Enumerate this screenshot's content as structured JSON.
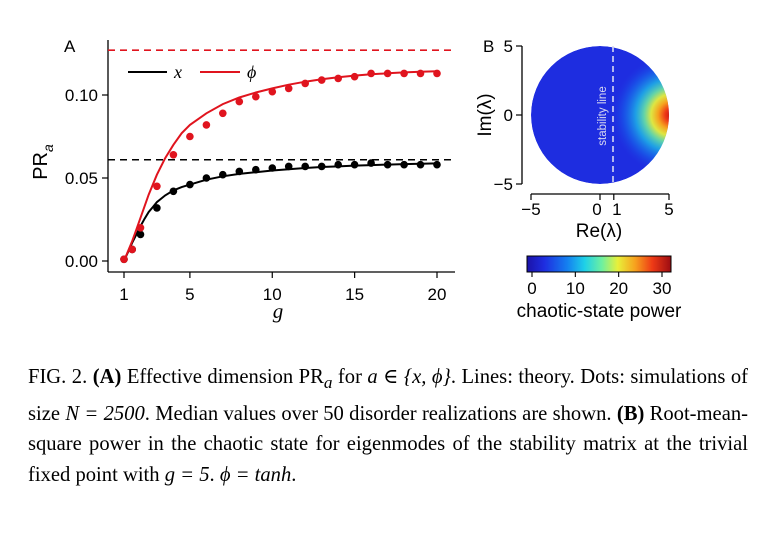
{
  "panel_a": {
    "label": "A",
    "legend": {
      "x_symbol": "x",
      "phi_symbol": "ϕ"
    },
    "xlabel": "g",
    "ylabel_main": "PR",
    "ylabel_sub": "a",
    "x_ticks": [
      "1",
      "5",
      "10",
      "15",
      "20"
    ],
    "y_ticks": [
      "0.00",
      "0.05",
      "0.10"
    ]
  },
  "panel_b": {
    "label": "B",
    "xlabel": "Re(λ)",
    "ylabel": "Im(λ)",
    "x_ticks": [
      "−5",
      "0",
      "1",
      "5"
    ],
    "y_ticks": [
      "5",
      "0",
      "−5"
    ],
    "stability_label": "stability line",
    "colorbar_ticks": [
      "0",
      "10",
      "20",
      "30"
    ],
    "colorbar_label": "chaotic-state power"
  },
  "caption": {
    "fig_label": "FIG. 2.",
    "a_tag": "(A)",
    "a_text_1": " Effective dimension PR",
    "a_sub": "a",
    "a_text_2": " for ",
    "a_math": "a ∈ {x, ϕ}",
    "a_text_3": ". Lines: theory. Dots: simulations of size ",
    "a_math_n": "N = 2500",
    "a_text_4": ". Median values over 50 disorder realizations are shown. ",
    "b_tag": "(B)",
    "b_text_1": " Root-mean-square power in the chaotic state for eigenmodes of the stability matrix at the trivial fixed point with ",
    "b_math_g": "g = 5",
    "b_text_2": ". ",
    "b_math_phi": "ϕ = tanh",
    "b_text_3": "."
  },
  "colors": {
    "x_series": "#000000",
    "phi_series": "#e0141e",
    "x_asymptote": "#000000",
    "phi_asymptote": "#e0141e"
  },
  "chart_data": [
    {
      "type": "line",
      "panel": "A",
      "title": "",
      "xlabel": "g",
      "ylabel": "PR_a",
      "xlim": [
        0,
        21
      ],
      "ylim": [
        -0.005,
        0.13
      ],
      "x_ticks": [
        1,
        5,
        10,
        15,
        20
      ],
      "y_ticks": [
        0.0,
        0.05,
        0.1
      ],
      "asymptotes": [
        {
          "series": "ϕ",
          "y": 0.127,
          "style": "dashed"
        },
        {
          "series": "x",
          "y": 0.061,
          "style": "dashed"
        }
      ],
      "series": [
        {
          "name": "x",
          "theory_x": [
            1.0,
            1.25,
            1.5,
            1.75,
            2.0,
            2.25,
            2.5,
            2.75,
            3.0,
            3.5,
            4.0,
            4.5,
            5.0,
            6.0,
            7.0,
            8.0,
            9.0,
            10.0,
            11.0,
            12.0,
            13.0,
            14.0,
            15.0,
            16.0,
            17.0,
            18.0,
            19.0,
            20.0
          ],
          "theory_y": [
            0.0,
            0.0055,
            0.011,
            0.016,
            0.021,
            0.0255,
            0.0295,
            0.0325,
            0.0355,
            0.0395,
            0.0425,
            0.0445,
            0.046,
            0.049,
            0.051,
            0.0525,
            0.0535,
            0.0545,
            0.0553,
            0.056,
            0.0566,
            0.057,
            0.0575,
            0.0578,
            0.0581,
            0.0584,
            0.0586,
            0.0588
          ],
          "sim_x": [
            1,
            1.5,
            2,
            3,
            4,
            5,
            6,
            7,
            8,
            9,
            10,
            11,
            12,
            13,
            14,
            15,
            16,
            17,
            18,
            19,
            20
          ],
          "sim_y": [
            0.001,
            0.007,
            0.016,
            0.032,
            0.042,
            0.046,
            0.05,
            0.052,
            0.054,
            0.055,
            0.056,
            0.057,
            0.057,
            0.057,
            0.058,
            0.058,
            0.059,
            0.058,
            0.058,
            0.058,
            0.058
          ]
        },
        {
          "name": "ϕ",
          "theory_x": [
            1.0,
            1.25,
            1.5,
            1.75,
            2.0,
            2.5,
            3.0,
            3.5,
            4.0,
            4.5,
            5.0,
            6.0,
            7.0,
            8.0,
            9.0,
            10.0,
            11.0,
            12.0,
            13.0,
            14.0,
            15.0,
            16.0,
            17.0,
            18.0,
            19.0,
            20.0
          ],
          "theory_y": [
            0.0,
            0.006,
            0.012,
            0.019,
            0.026,
            0.04,
            0.052,
            0.062,
            0.07,
            0.077,
            0.082,
            0.089,
            0.0945,
            0.0985,
            0.1015,
            0.104,
            0.1062,
            0.108,
            0.1095,
            0.1107,
            0.1117,
            0.1125,
            0.1131,
            0.1136,
            0.114,
            0.1143
          ],
          "sim_x": [
            1,
            1.5,
            2,
            3,
            4,
            5,
            6,
            7,
            8,
            9,
            10,
            11,
            12,
            13,
            14,
            15,
            16,
            17,
            18,
            19,
            20
          ],
          "sim_y": [
            0.001,
            0.007,
            0.02,
            0.045,
            0.064,
            0.075,
            0.082,
            0.089,
            0.096,
            0.099,
            0.102,
            0.104,
            0.107,
            0.109,
            0.11,
            0.111,
            0.113,
            0.113,
            0.113,
            0.113,
            0.113
          ]
        }
      ]
    },
    {
      "type": "heatmap",
      "panel": "B",
      "title": "",
      "xlabel": "Re(λ)",
      "ylabel": "Im(λ)",
      "xlim": [
        -5,
        5
      ],
      "ylim": [
        -5,
        5
      ],
      "domain": "disk of radius 5 centered at 0",
      "stability_line_x": 1,
      "colorbar": {
        "min": 0,
        "max": 30,
        "ticks": [
          0,
          10,
          20,
          30
        ],
        "label": "chaotic-state power"
      },
      "description_values": [
        {
          "re": -5,
          "power": 0
        },
        {
          "re": 1,
          "power": 0
        },
        {
          "re": 3,
          "power": 3
        },
        {
          "re": 4,
          "power": 10
        },
        {
          "re": 4.6,
          "power": 20
        },
        {
          "re": 5,
          "power": 30
        }
      ]
    }
  ]
}
